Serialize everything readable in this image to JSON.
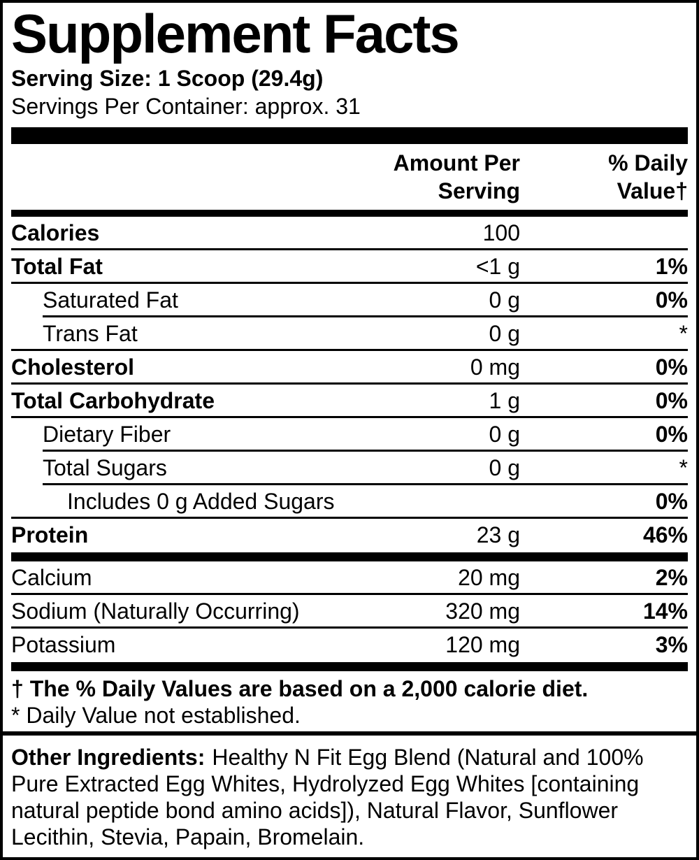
{
  "title": "Supplement Facts",
  "serving": {
    "size": "Serving Size: 1 Scoop (29.4g)",
    "per_container": "Servings Per Container: approx. 31"
  },
  "columns": {
    "amount_header": [
      "Amount Per",
      "Serving"
    ],
    "dv_header": [
      "% Daily",
      "Value†"
    ]
  },
  "nutrients": [
    {
      "name": "Calories",
      "amount": "100",
      "dv": "",
      "bold": true,
      "dv_bold": false,
      "indent": 0,
      "sep": "full"
    },
    {
      "name": "Total Fat",
      "amount": "<1 g",
      "dv": "1%",
      "bold": true,
      "dv_bold": true,
      "indent": 0,
      "sep": "full"
    },
    {
      "name": "Saturated Fat",
      "amount": "0 g",
      "dv": "0%",
      "bold": false,
      "dv_bold": true,
      "indent": 1,
      "sep": "indent"
    },
    {
      "name": "Trans Fat",
      "amount": "0 g",
      "dv": "*",
      "bold": false,
      "dv_bold": false,
      "indent": 1,
      "sep": "full"
    },
    {
      "name": "Cholesterol",
      "amount": "0 mg",
      "dv": "0%",
      "bold": true,
      "dv_bold": true,
      "indent": 0,
      "sep": "full"
    },
    {
      "name": "Total Carbohydrate",
      "amount": "1 g",
      "dv": "0%",
      "bold": true,
      "dv_bold": true,
      "indent": 0,
      "sep": "full"
    },
    {
      "name": "Dietary Fiber",
      "amount": "0 g",
      "dv": "0%",
      "bold": false,
      "dv_bold": true,
      "indent": 1,
      "sep": "indent"
    },
    {
      "name": "Total Sugars",
      "amount": "0 g",
      "dv": "*",
      "bold": false,
      "dv_bold": false,
      "indent": 1,
      "sep": "indent"
    },
    {
      "name": "Includes 0 g Added Sugars",
      "amount": "",
      "dv": "0%",
      "bold": false,
      "dv_bold": true,
      "indent": 2,
      "sep": "full"
    },
    {
      "name": "Protein",
      "amount": "23 g",
      "dv": "46%",
      "bold": true,
      "dv_bold": true,
      "indent": 0,
      "sep": "bar"
    },
    {
      "name": "Calcium",
      "amount": "20 mg",
      "dv": "2%",
      "bold": false,
      "dv_bold": true,
      "indent": 0,
      "sep": "full"
    },
    {
      "name": "Sodium (Naturally Occurring)",
      "amount": "320 mg",
      "dv": "14%",
      "bold": false,
      "dv_bold": true,
      "indent": 0,
      "sep": "full"
    },
    {
      "name": "Potassium",
      "amount": "120 mg",
      "dv": "3%",
      "bold": false,
      "dv_bold": true,
      "indent": 0,
      "sep": "bar"
    }
  ],
  "footnotes": {
    "daily_values": "† The % Daily Values are based on a 2,000 calorie diet.",
    "not_established": "* Daily Value not established."
  },
  "other_ingredients": {
    "label": "Other Ingredients:",
    "text_lines": [
      "Healthy N Fit Egg Blend (Natural and 100%",
      "Pure Extracted Egg Whites, Hydrolyzed Egg Whites [containing",
      "natural peptide bond amino acids]), Natural Flavor, Sunflower",
      "Lecithin, Stevia, Papain, Bromelain."
    ]
  },
  "colors": {
    "ink": "#000000",
    "background": "#ffffff"
  }
}
